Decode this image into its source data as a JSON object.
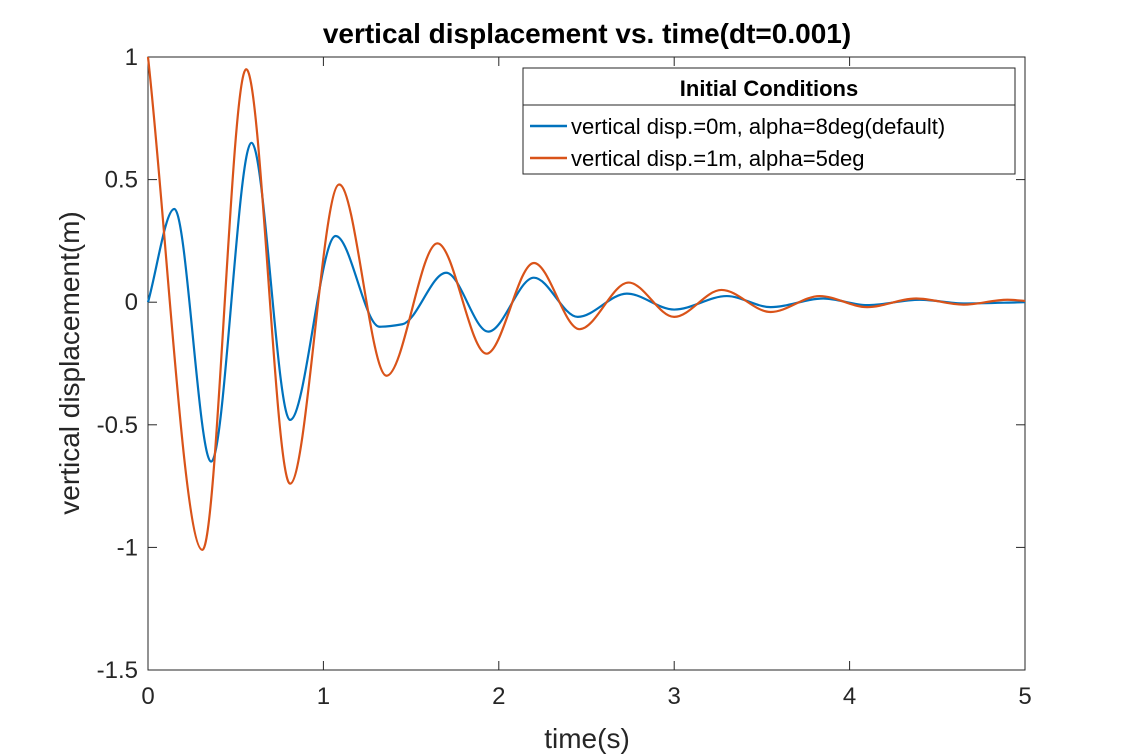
{
  "chart_data": {
    "type": "line",
    "title": "vertical displacement vs. time(dt=0.001)",
    "xlabel": "time(s)",
    "ylabel": "vertical displacement(m)",
    "xlim": [
      0,
      5
    ],
    "ylim": [
      -1.5,
      1
    ],
    "xticks": [
      0,
      1,
      2,
      3,
      4,
      5
    ],
    "yticks": [
      -1.5,
      -1,
      -0.5,
      0,
      0.5,
      1
    ],
    "xtick_labels": [
      "0",
      "1",
      "2",
      "3",
      "4",
      "5"
    ],
    "ytick_labels": [
      "-1.5",
      "-1",
      "-0.5",
      "0",
      "0.5",
      "1"
    ],
    "grid": false,
    "legend": {
      "title": "Initial Conditions",
      "placement": "top-right"
    },
    "series": [
      {
        "name": "vertical disp.=0m, alpha=8deg(default)",
        "color": "#0072BD",
        "points": [
          [
            0.0,
            0.0
          ],
          [
            0.15,
            0.38
          ],
          [
            0.36,
            -0.65
          ],
          [
            0.59,
            0.65
          ],
          [
            0.81,
            -0.48
          ],
          [
            1.07,
            0.27
          ],
          [
            1.32,
            -0.1
          ],
          [
            1.45,
            -0.09
          ],
          [
            1.7,
            0.12
          ],
          [
            1.94,
            -0.12
          ],
          [
            2.2,
            0.1
          ],
          [
            2.45,
            -0.06
          ],
          [
            2.73,
            0.035
          ],
          [
            3.0,
            -0.03
          ],
          [
            3.3,
            0.025
          ],
          [
            3.55,
            -0.02
          ],
          [
            3.85,
            0.015
          ],
          [
            4.1,
            -0.012
          ],
          [
            4.4,
            0.01
          ],
          [
            4.65,
            -0.005
          ],
          [
            5.0,
            0.0
          ]
        ]
      },
      {
        "name": "vertical disp.=1m, alpha=5deg",
        "color": "#D95319",
        "points": [
          [
            0.0,
            1.0
          ],
          [
            0.31,
            -1.01
          ],
          [
            0.56,
            0.95
          ],
          [
            0.81,
            -0.74
          ],
          [
            1.09,
            0.48
          ],
          [
            1.36,
            -0.3
          ],
          [
            1.65,
            0.24
          ],
          [
            1.93,
            -0.21
          ],
          [
            2.2,
            0.16
          ],
          [
            2.46,
            -0.11
          ],
          [
            2.74,
            0.08
          ],
          [
            3.0,
            -0.06
          ],
          [
            3.27,
            0.05
          ],
          [
            3.55,
            -0.04
          ],
          [
            3.83,
            0.025
          ],
          [
            4.1,
            -0.02
          ],
          [
            4.38,
            0.015
          ],
          [
            4.65,
            -0.01
          ],
          [
            4.9,
            0.01
          ],
          [
            5.0,
            0.005
          ]
        ]
      }
    ]
  }
}
